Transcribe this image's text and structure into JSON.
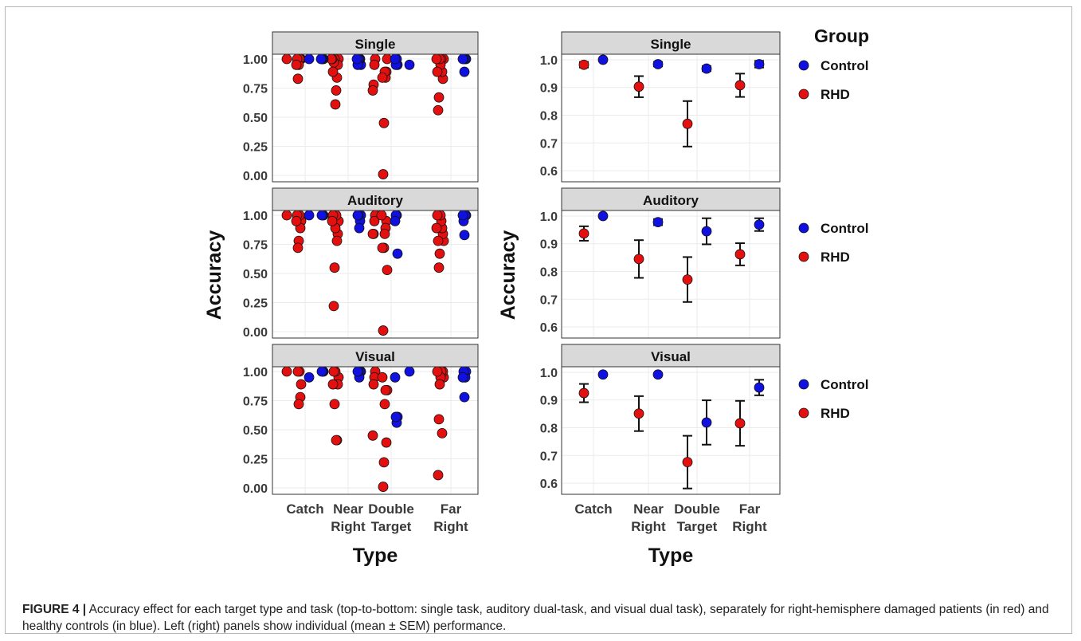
{
  "colors": {
    "control": "#1010e0",
    "rhd": "#e41010",
    "strip": "#d9d9d9",
    "grid": "#ebebeb"
  },
  "caption": {
    "label": "FIGURE 4 |",
    "text": " Accuracy effect for each target type and task (top-to-bottom: single task, auditory dual-task, and visual dual task), separately for right-hemisphere damaged patients (in red) and healthy controls (in blue). Left (right) panels show individual (mean ± SEM) performance."
  },
  "chart_data": [
    {
      "type": "scatter",
      "title": "",
      "xlabel": "Type",
      "ylabel": "Accuracy",
      "ylim": [
        0,
        1.0
      ],
      "yticks": [
        "0.00",
        "0.25",
        "0.50",
        "0.75",
        "1.00"
      ],
      "categories": [
        "Catch",
        "Near Right",
        "Double Target",
        "Far Right"
      ],
      "panels": [
        {
          "strip": "Single",
          "series": [
            {
              "name": "RHD",
              "points": {
                "Catch": [
                  1,
                  1,
                  1,
                  1,
                  0.95,
                  0.83,
                  1,
                  0.95
                ],
                "Near Right": [
                  1,
                  0.95,
                  0.84,
                  0.73,
                  0.61,
                  1,
                  0.97,
                  0.89,
                  1,
                  1
                ],
                "Double Target": [
                  1,
                  0.95,
                  0.78,
                  0.73,
                  1,
                  0.89,
                  0.84,
                  0.89,
                  0.45,
                  0.01,
                  0.84
                ],
                "Far Right": [
                  1,
                  0.83,
                  0.89,
                  1,
                  0.95,
                  1,
                  0.67,
                  0.56,
                  0.89,
                  1
                ]
              }
            },
            {
              "name": "Control",
              "points": {
                "Catch": [
                  1,
                  1,
                  1,
                  1,
                  1
                ],
                "Near Right": [
                  0.95,
                  1,
                  1,
                  1,
                  0.95,
                  1
                ],
                "Double Target": [
                  0.95,
                  1,
                  0.95,
                  1,
                  0.95
                ],
                "Far Right": [
                  1,
                  1,
                  0.89,
                  1,
                  1
                ]
              }
            }
          ]
        },
        {
          "strip": "Auditory",
          "series": [
            {
              "name": "RHD",
              "points": {
                "Catch": [
                  1,
                  0.95,
                  0.89,
                  1,
                  0.78,
                  0.72,
                  1,
                  0.95
                ],
                "Near Right": [
                  0.95,
                  0.84,
                  0.78,
                  1,
                  0.89,
                  0.55,
                  0.22,
                  1,
                  0.95
                ],
                "Double Target": [
                  1,
                  0.95,
                  0.84,
                  0.84,
                  0.53,
                  0.95,
                  0.89,
                  0.84,
                  0.72,
                  0.01,
                  0.72,
                  1
                ],
                "Far Right": [
                  0.78,
                  0.84,
                  0.89,
                  0.95,
                  1,
                  0.67,
                  0.55,
                  0.78,
                  1,
                  0.89
                ]
              }
            },
            {
              "name": "Control",
              "points": {
                "Catch": [
                  1,
                  1,
                  1,
                  1
                ],
                "Near Right": [
                  1,
                  0.95,
                  0.89,
                  1,
                  1
                ],
                "Double Target": [
                  0.67,
                  1,
                  1,
                  0.95
                ],
                "Far Right": [
                  1,
                  1,
                  0.83,
                  0.95,
                  1
                ]
              }
            }
          ]
        },
        {
          "strip": "Visual",
          "series": [
            {
              "name": "RHD",
              "points": {
                "Catch": [
                  1,
                  0.89,
                  0.78,
                  1,
                  0.72,
                  1
                ],
                "Near Right": [
                  0.95,
                  0.89,
                  0.41,
                  0.41,
                  1,
                  0.72,
                  1,
                  0.89
                ],
                "Double Target": [
                  1,
                  0.95,
                  0.89,
                  0.45,
                  0.84,
                  0.39,
                  0.84,
                  0.72,
                  0.22,
                  0.01,
                  0.95
                ],
                "Far Right": [
                  0.95,
                  1,
                  0.47,
                  1,
                  0.95,
                  0.89,
                  0.59,
                  0.11,
                  1
                ]
              }
            },
            {
              "name": "Control",
              "points": {
                "Catch": [
                  0.95,
                  1,
                  1,
                  1
                ],
                "Near Right": [
                  1,
                  1,
                  0.95,
                  1,
                  1
                ],
                "Double Target": [
                  0.61,
                  0.56,
                  0.61,
                  0.95,
                  1
                ],
                "Far Right": [
                  1,
                  0.95,
                  0.78,
                  1,
                  0.95
                ]
              }
            }
          ]
        }
      ]
    },
    {
      "type": "scatter",
      "title": "",
      "xlabel": "Type",
      "ylabel": "Accuracy",
      "ylim": [
        0.56,
        1.02
      ],
      "yticks": [
        "0.6",
        "0.7",
        "0.8",
        "0.9",
        "1.0"
      ],
      "categories": [
        "Catch",
        "Near Right",
        "Double Target",
        "Far Right"
      ],
      "legend": {
        "title": "Group",
        "entries": [
          "Control",
          "RHD"
        ],
        "position": "right"
      },
      "panels": [
        {
          "strip": "Single",
          "series": [
            {
              "name": "RHD",
              "mean": [
                0.982,
                0.903,
                0.769,
                0.908
              ],
              "sem": [
                0.01,
                0.038,
                0.082,
                0.042
              ]
            },
            {
              "name": "Control",
              "mean": [
                1.0,
                0.984,
                0.968,
                0.984
              ],
              "sem": [
                0,
                0.008,
                0.009,
                0.012
              ]
            }
          ]
        },
        {
          "strip": "Auditory",
          "series": [
            {
              "name": "RHD",
              "mean": [
                0.937,
                0.845,
                0.771,
                0.862
              ],
              "sem": [
                0.026,
                0.068,
                0.081,
                0.04
              ]
            },
            {
              "name": "Control",
              "mean": [
                1.0,
                0.978,
                0.945,
                0.969
              ],
              "sem": [
                0,
                0.011,
                0.047,
                0.023
              ]
            }
          ]
        },
        {
          "strip": "Visual",
          "series": [
            {
              "name": "RHD",
              "mean": [
                0.925,
                0.851,
                0.676,
                0.816
              ],
              "sem": [
                0.033,
                0.063,
                0.095,
                0.081
              ]
            },
            {
              "name": "Control",
              "mean": [
                0.992,
                0.992,
                0.819,
                0.945
              ],
              "sem": [
                0,
                0,
                0.08,
                0.028
              ]
            }
          ]
        }
      ]
    }
  ]
}
